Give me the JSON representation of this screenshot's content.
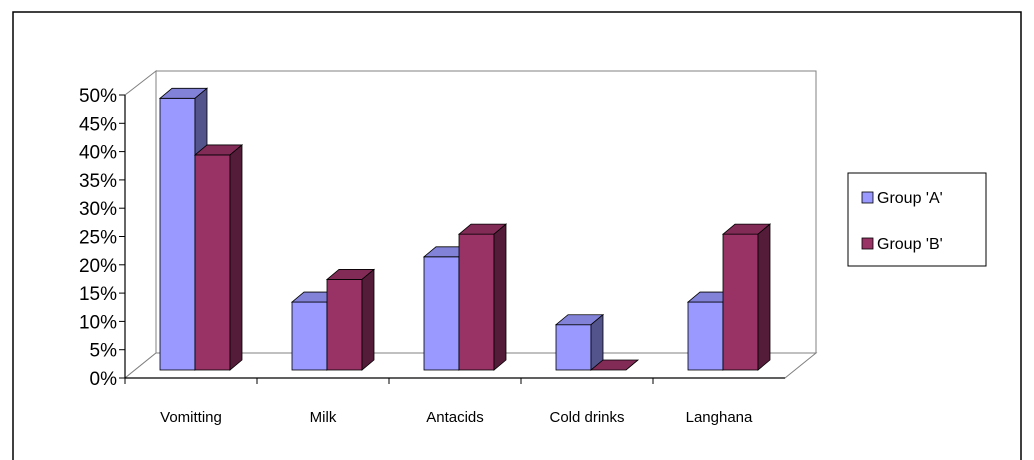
{
  "chart_data": {
    "type": "bar",
    "categories": [
      "Vomitting",
      "Milk",
      "Antacids",
      "Cold drinks",
      "Langhana"
    ],
    "series": [
      {
        "name": "Group 'A'",
        "values": [
          48,
          12,
          20,
          8,
          12
        ],
        "color": "#9999ff"
      },
      {
        "name": "Group 'B'",
        "values": [
          38,
          16,
          24,
          0,
          24
        ],
        "color": "#993366"
      }
    ],
    "yticks": [
      "0%",
      "5%",
      "10%",
      "15%",
      "20%",
      "25%",
      "30%",
      "35%",
      "40%",
      "45%",
      "50%"
    ],
    "ylim": [
      0,
      50
    ],
    "legend_position": "right",
    "grid": false,
    "style": "3d-clustered-column"
  }
}
